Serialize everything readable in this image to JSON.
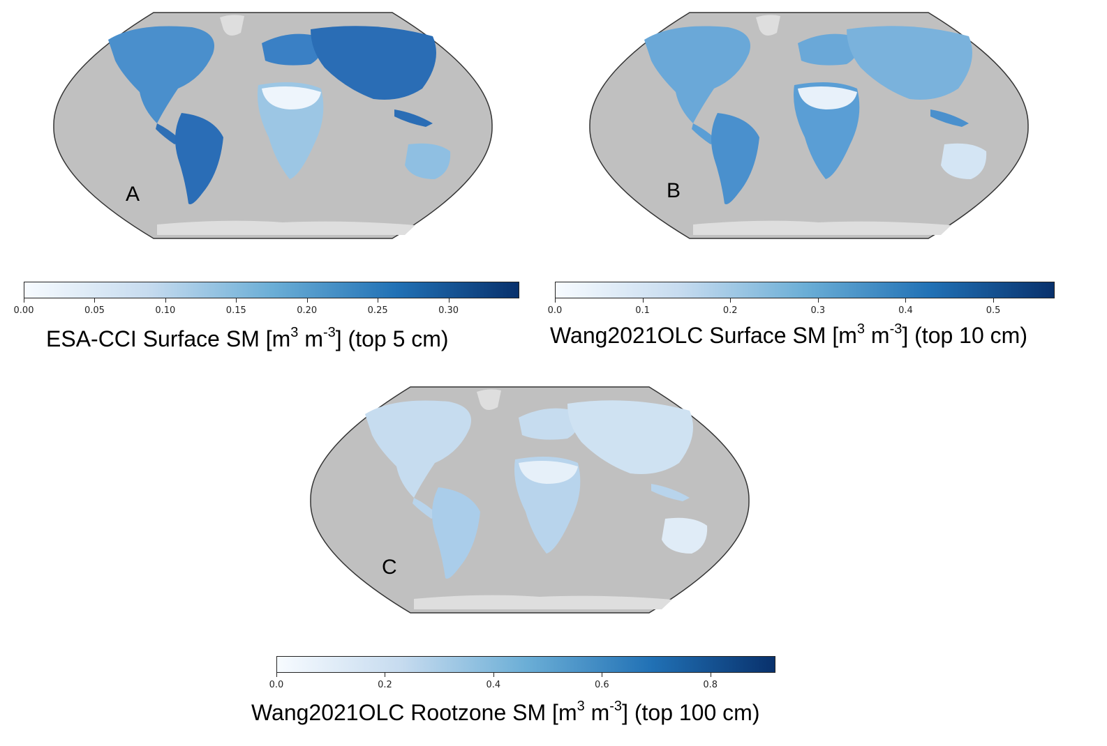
{
  "panels": [
    {
      "letter": "A",
      "colorbar": {
        "ticks": [
          "0.00",
          "0.05",
          "0.10",
          "0.15",
          "0.20",
          "0.25",
          "0.30"
        ],
        "tick_values": [
          0.0,
          0.05,
          0.1,
          0.15,
          0.2,
          0.25,
          0.3
        ],
        "vmin": 0.0,
        "vmax": 0.35,
        "title_pre": "ESA-CCI Surface SM [m",
        "title_sup1": "3",
        "title_mid": " m",
        "title_sup2": "-3",
        "title_post": "] (top 5 cm)"
      }
    },
    {
      "letter": "B",
      "colorbar": {
        "ticks": [
          "0.0",
          "0.1",
          "0.2",
          "0.3",
          "0.4",
          "0.5"
        ],
        "tick_values": [
          0.0,
          0.1,
          0.2,
          0.3,
          0.4,
          0.5
        ],
        "vmin": 0.0,
        "vmax": 0.57,
        "title_pre": "Wang2021OLC  Surface SM [m",
        "title_sup1": "3",
        "title_mid": " m",
        "title_sup2": "-3",
        "title_post": "] (top 10 cm)"
      }
    },
    {
      "letter": "C",
      "colorbar": {
        "ticks": [
          "0.0",
          "0.2",
          "0.4",
          "0.6",
          "0.8"
        ],
        "tick_values": [
          0.0,
          0.2,
          0.4,
          0.6,
          0.8
        ],
        "vmin": 0.0,
        "vmax": 0.92,
        "title_pre": "Wang2021OLC Rootzone SM [m",
        "title_sup1": "3",
        "title_mid": " m",
        "title_sup2": "-3",
        "title_post": "] (top 100 cm)"
      }
    }
  ],
  "colors": {
    "ocean": "#c0c0c0",
    "ice": "#dedede",
    "cmap": [
      "#f7fbff",
      "#c6dbef",
      "#6baed6",
      "#2171b5",
      "#08306b"
    ]
  }
}
